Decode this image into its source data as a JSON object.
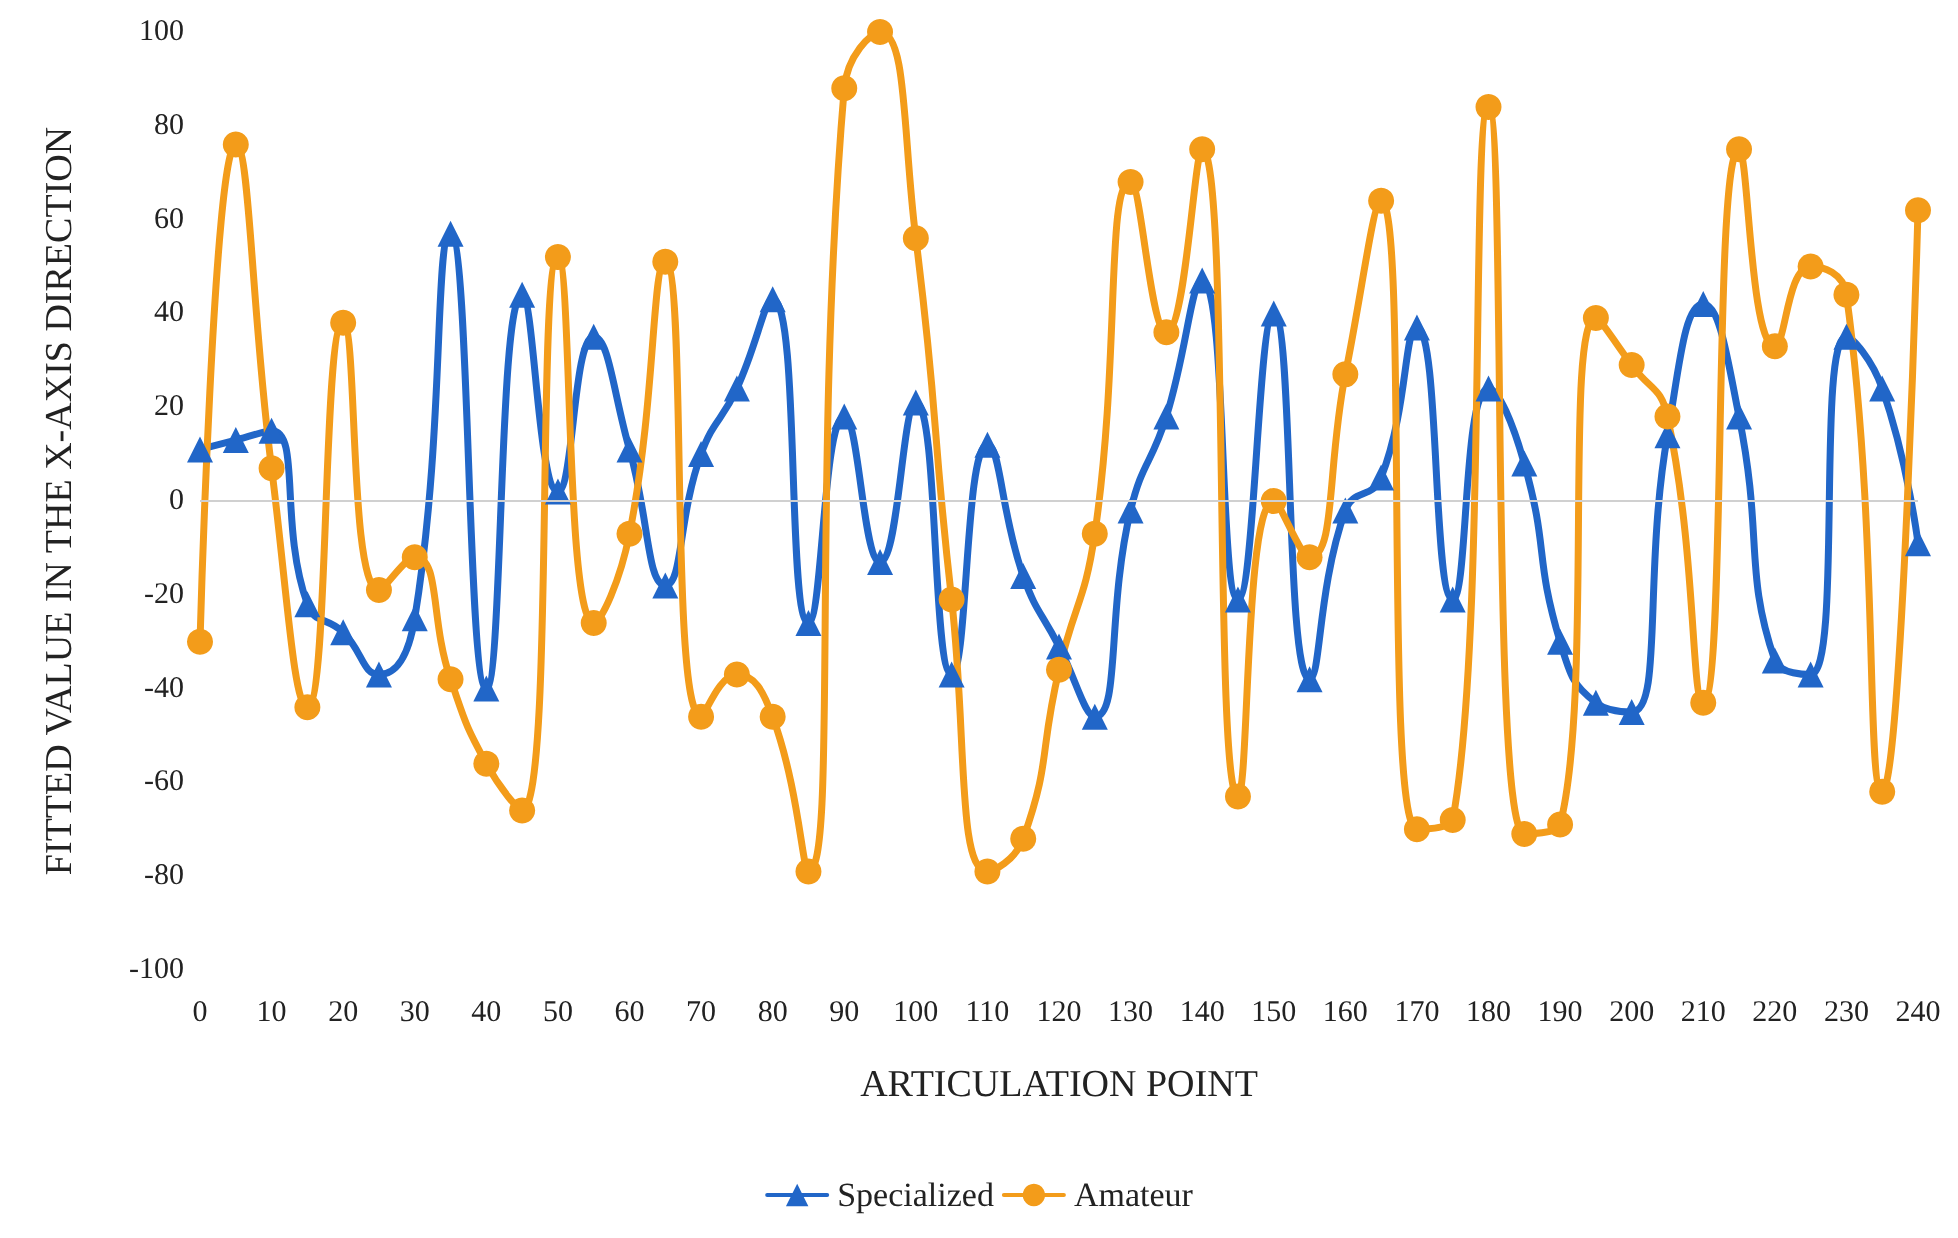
{
  "chart_data": {
    "type": "line",
    "xlabel": "ARTICULATION POINT",
    "ylabel": "FITTED VALUE IN THE X-AXIS DIRECTION",
    "x": [
      0,
      5,
      10,
      15,
      20,
      25,
      30,
      35,
      40,
      45,
      50,
      55,
      60,
      65,
      70,
      75,
      80,
      85,
      90,
      95,
      100,
      105,
      110,
      115,
      120,
      125,
      130,
      135,
      140,
      145,
      150,
      155,
      160,
      165,
      170,
      175,
      180,
      185,
      190,
      195,
      200,
      205,
      210,
      215,
      220,
      225,
      230,
      235,
      240
    ],
    "series": [
      {
        "name": "Specialized",
        "color": "#2166c8",
        "marker": "triangle",
        "values": [
          11,
          13,
          15,
          -22,
          -28,
          -37,
          -25,
          57,
          -40,
          44,
          2,
          35,
          11,
          -18,
          10,
          24,
          43,
          -26,
          18,
          -13,
          21,
          -37,
          12,
          -16,
          -31,
          -46,
          -2,
          18,
          47,
          -21,
          40,
          -38,
          -2,
          5,
          37,
          -21,
          24,
          8,
          -30,
          -43,
          -45,
          14,
          42,
          18,
          -34,
          -37,
          35,
          24,
          -9
        ]
      },
      {
        "name": "Amateur",
        "color": "#f39c1a",
        "marker": "circle",
        "values": [
          -30,
          76,
          7,
          -44,
          38,
          -19,
          -12,
          -38,
          -56,
          -66,
          52,
          -26,
          -7,
          51,
          -46,
          -37,
          -46,
          -79,
          88,
          100,
          56,
          -21,
          -79,
          -72,
          -36,
          -7,
          68,
          36,
          75,
          -63,
          0,
          -12,
          27,
          64,
          -70,
          -68,
          84,
          -71,
          -69,
          39,
          29,
          18,
          -43,
          75,
          33,
          50,
          44,
          -62,
          62
        ]
      }
    ],
    "xlim": [
      0,
      240
    ],
    "xticks": [
      0,
      10,
      20,
      30,
      40,
      50,
      60,
      70,
      80,
      90,
      100,
      110,
      120,
      130,
      140,
      150,
      160,
      170,
      180,
      190,
      200,
      210,
      220,
      230,
      240
    ],
    "ylim": [
      -100,
      100
    ],
    "yticks": [
      -100,
      -80,
      -60,
      -40,
      -20,
      0,
      20,
      40,
      60,
      80,
      100
    ],
    "ref_lines": [
      {
        "axis": "y",
        "value": 0,
        "color": "#d0d0d0"
      }
    ],
    "grid": false,
    "legend": "bottom"
  }
}
